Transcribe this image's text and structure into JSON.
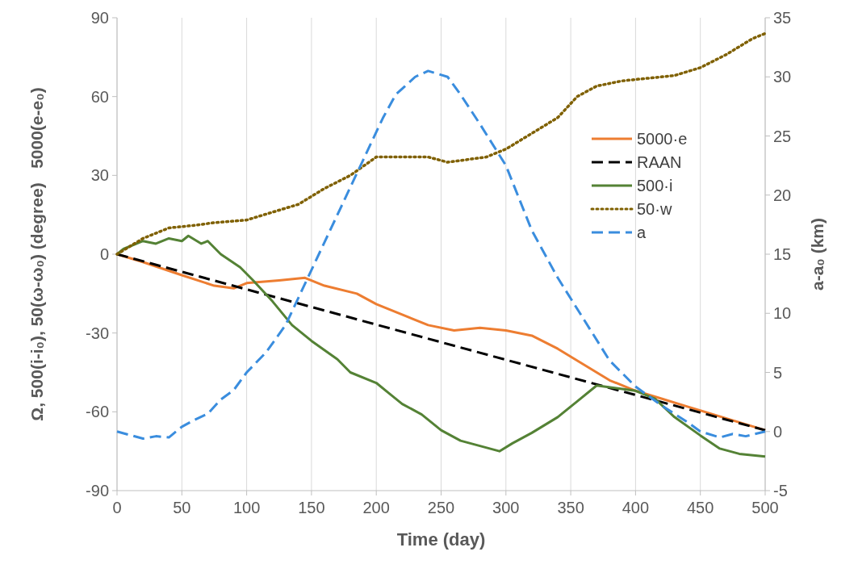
{
  "chart_data": {
    "type": "line",
    "xlabel": "Time (day)",
    "ylabel": "Ω, 500(i-i₀), 50(ω-ω₀) (degree)   5000(e-e₀)",
    "y2label": "a-a₀ (km)",
    "xlim": [
      0,
      500
    ],
    "xticks": [
      0,
      50,
      100,
      150,
      200,
      250,
      300,
      350,
      400,
      450,
      500
    ],
    "ylim": [
      -90,
      90
    ],
    "yticks": [
      -90,
      -60,
      -30,
      0,
      30,
      60,
      90
    ],
    "y2lim": [
      -5,
      35
    ],
    "y2ticks": [
      -5,
      0,
      5,
      10,
      15,
      20,
      25,
      30,
      35
    ],
    "grid": "x",
    "legend": "right",
    "series": [
      {
        "name": "5000·e",
        "color": "#ed7d31",
        "line_style": "solid",
        "x": [
          0,
          20,
          50,
          75,
          90,
          100,
          125,
          145,
          160,
          185,
          200,
          220,
          240,
          260,
          280,
          300,
          320,
          340,
          360,
          380,
          400,
          420,
          440,
          460,
          480,
          500
        ],
        "values": [
          0,
          -3,
          -8,
          -12,
          -13,
          -11,
          -10,
          -9,
          -12,
          -15,
          -19,
          -23,
          -27,
          -29,
          -28,
          -29,
          -31,
          -36,
          -42,
          -48,
          -52,
          -55,
          -58,
          -61,
          -64,
          -67
        ]
      },
      {
        "name": "RAAN",
        "color": "#000000",
        "line_style": "dashed",
        "x": [
          0,
          500
        ],
        "values": [
          0,
          -67
        ]
      },
      {
        "name": "500·i",
        "color": "#548235",
        "line_style": "solid",
        "x": [
          0,
          5,
          20,
          30,
          40,
          50,
          55,
          65,
          70,
          80,
          95,
          105,
          120,
          135,
          150,
          170,
          180,
          200,
          210,
          220,
          235,
          250,
          265,
          280,
          295,
          305,
          320,
          340,
          355,
          370,
          385,
          400,
          415,
          430,
          450,
          465,
          480,
          500
        ],
        "values": [
          0,
          2,
          5,
          4,
          6,
          5,
          7,
          4,
          5,
          0,
          -5,
          -10,
          -18,
          -27,
          -33,
          -40,
          -45,
          -49,
          -53,
          -57,
          -61,
          -67,
          -71,
          -73,
          -75,
          -72,
          -68,
          -62,
          -56,
          -50,
          -51,
          -52,
          -55,
          -62,
          -69,
          -74,
          -76,
          -77
        ]
      },
      {
        "name": "50·w",
        "color": "#7f6000",
        "line_style": "dotted",
        "x": [
          0,
          20,
          40,
          60,
          75,
          100,
          120,
          140,
          160,
          180,
          200,
          220,
          240,
          255,
          270,
          285,
          300,
          320,
          340,
          355,
          370,
          390,
          410,
          430,
          450,
          470,
          490,
          500
        ],
        "values": [
          0,
          6,
          10,
          11,
          12,
          13,
          16,
          19,
          25,
          30,
          37,
          37,
          37,
          35,
          36,
          37,
          40,
          46,
          52,
          60,
          64,
          66,
          67,
          68,
          71,
          76,
          82,
          84
        ]
      },
      {
        "name": "a",
        "color": "#3a8dde",
        "line_style": "dashed",
        "axis": "y2",
        "x": [
          0,
          10,
          20,
          30,
          40,
          50,
          60,
          70,
          80,
          90,
          100,
          115,
          130,
          145,
          160,
          175,
          190,
          205,
          215,
          230,
          240,
          255,
          265,
          280,
          300,
          320,
          340,
          360,
          380,
          400,
          420,
          440,
          450,
          465,
          475,
          485,
          500
        ],
        "values": [
          0,
          -0.3,
          -0.6,
          -0.4,
          -0.5,
          0.4,
          1,
          1.5,
          2.7,
          3.5,
          5,
          6.7,
          9,
          12.5,
          16,
          19.5,
          23,
          26.5,
          28.5,
          30,
          30.5,
          30,
          28.5,
          26,
          22.5,
          17,
          13,
          9.5,
          6,
          3.8,
          2.2,
          0.8,
          0,
          -0.5,
          -0.2,
          -0.4,
          0
        ]
      }
    ]
  }
}
